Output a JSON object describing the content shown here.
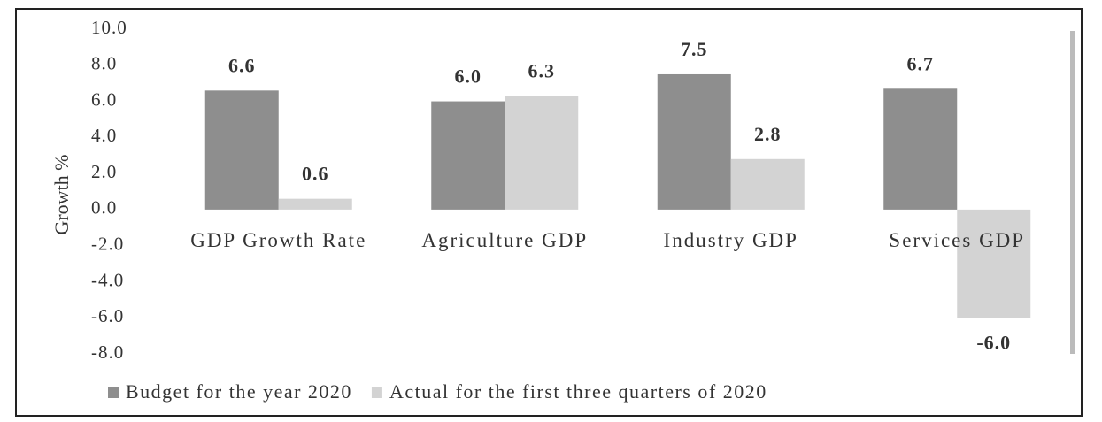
{
  "chart_data": {
    "type": "bar",
    "y_label": "Growth %",
    "categories": [
      "GDP Growth Rate",
      "Agriculture GDP",
      "Industry GDP",
      "Services GDP"
    ],
    "series": [
      {
        "name": "Budget for the year 2020",
        "color": "#8e8e8e",
        "values": [
          6.6,
          6,
          7.5,
          6.7
        ],
        "value_labels": [
          "6.6",
          "6.0",
          "7.5",
          "6.7"
        ]
      },
      {
        "name": "Actual for the first three quarters of 2020",
        "color": "#d3d3d3",
        "values": [
          0.6,
          6.3,
          2.8,
          -6
        ],
        "value_labels": [
          "0.6",
          "6.3",
          "2.8",
          "-6.0"
        ]
      }
    ],
    "ylim": [
      -8,
      10
    ],
    "yticks": [
      {
        "value": 10,
        "label": "10.0"
      },
      {
        "value": 8,
        "label": "8.0"
      },
      {
        "value": 6,
        "label": "6.0"
      },
      {
        "value": 4,
        "label": "4.0"
      },
      {
        "value": 2,
        "label": "2.0"
      },
      {
        "value": 0,
        "label": "0.0"
      },
      {
        "value": -2,
        "label": "-2.0"
      },
      {
        "value": -4,
        "label": "-4.0"
      },
      {
        "value": -6,
        "label": "-6.0"
      },
      {
        "value": -8,
        "label": "-8.0"
      }
    ],
    "grid": false,
    "legend": "bottom"
  }
}
